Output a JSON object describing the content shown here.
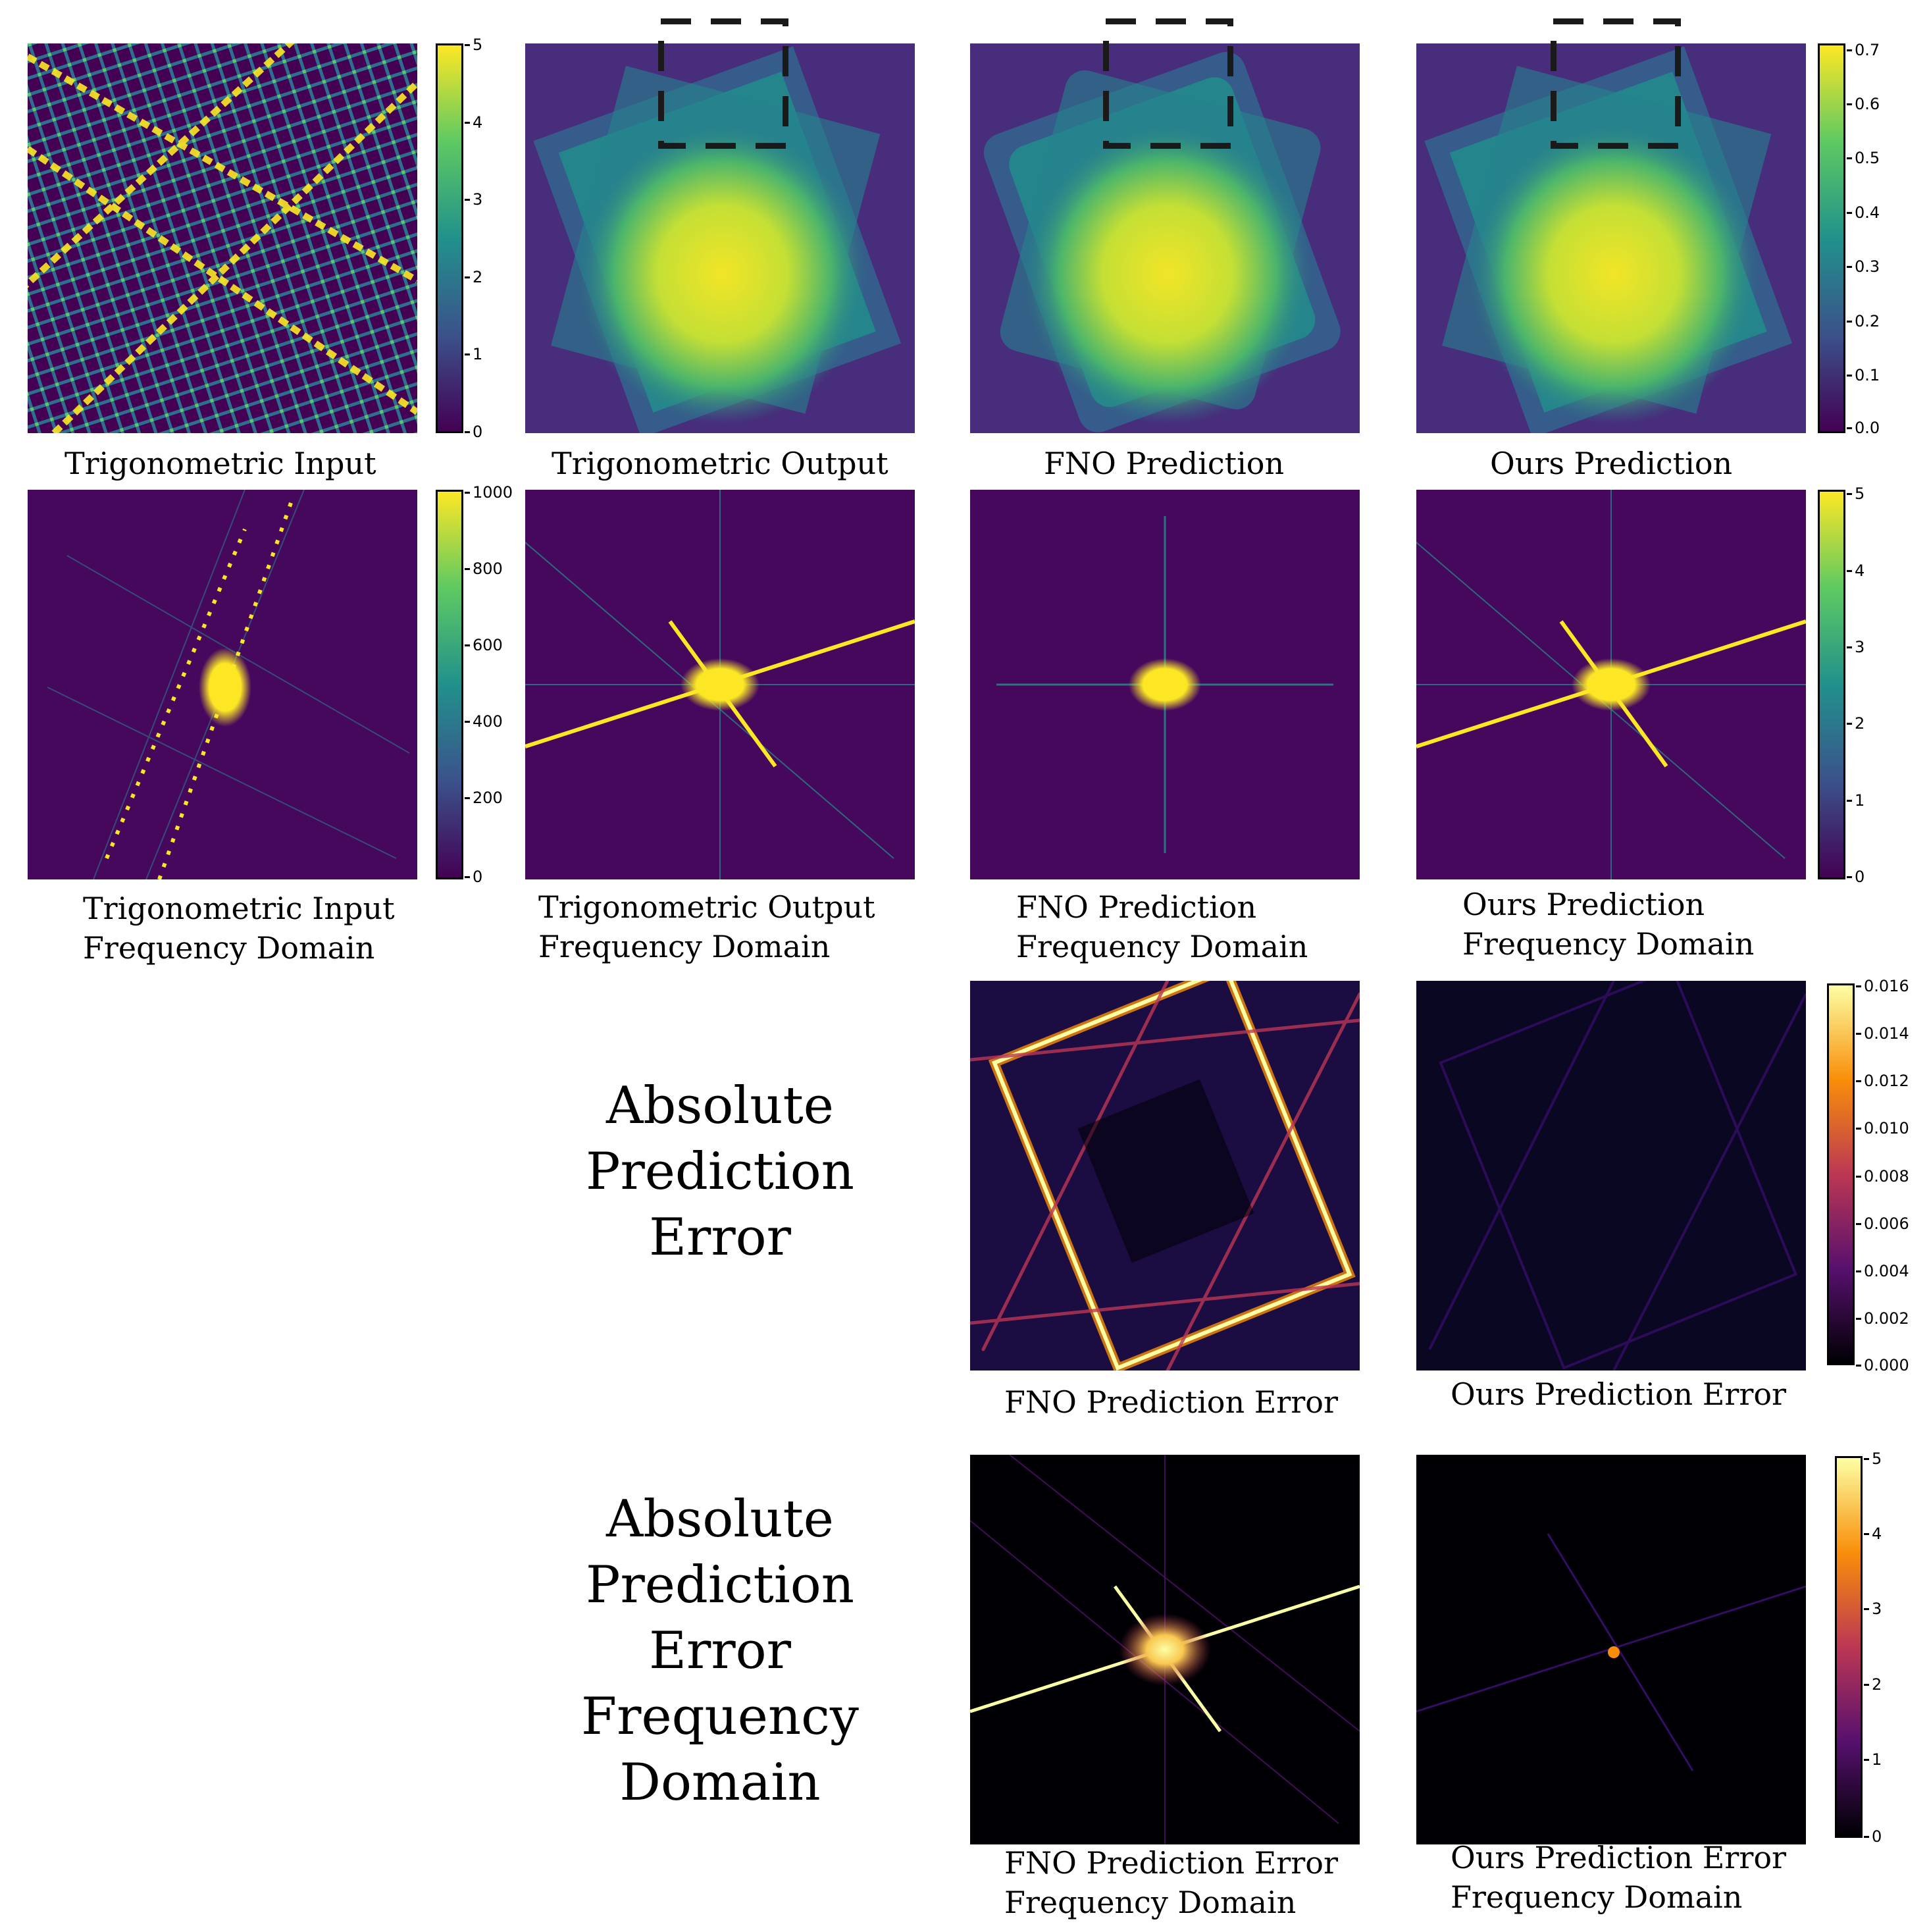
{
  "captions": {
    "r1c1": [
      "Trigonometric Input"
    ],
    "r1c2": [
      "Trigonometric Output"
    ],
    "r1c3": [
      "FNO Prediction"
    ],
    "r1c4": [
      "Ours Prediction"
    ],
    "r2c1": [
      "Trigonometric Input",
      "Frequency Domain"
    ],
    "r2c2": [
      "Trigonometric Output",
      "Frequency Domain"
    ],
    "r2c3": [
      "FNO Prediction",
      "Frequency Domain"
    ],
    "r2c4": [
      "Ours Prediction",
      "Frequency Domain"
    ],
    "r3c3": [
      "FNO Prediction Error"
    ],
    "r3c4": [
      "Ours Prediction Error"
    ],
    "r4c3": [
      "FNO Prediction Error",
      "Frequency Domain"
    ],
    "r4c4": [
      "Ours Prediction Error",
      "Frequency Domain"
    ]
  },
  "row_labels": {
    "error": [
      "Absolute",
      "Prediction",
      "Error"
    ],
    "error_freq": [
      "Absolute",
      "Prediction",
      "Error",
      "Frequency",
      "Domain"
    ]
  },
  "colorbars": {
    "input": {
      "colormap": "viridis",
      "ticks": [
        "5",
        "4",
        "3",
        "2",
        "1",
        "0"
      ]
    },
    "output": {
      "colormap": "viridis",
      "ticks": [
        "0.7",
        "0.6",
        "0.5",
        "0.4",
        "0.3",
        "0.2",
        "0.1",
        "0.0"
      ]
    },
    "input_freq": {
      "colormap": "viridis",
      "ticks": [
        "1000",
        "800",
        "600",
        "400",
        "200",
        "0"
      ]
    },
    "output_freq": {
      "colormap": "viridis",
      "ticks": [
        "5",
        "4",
        "3",
        "2",
        "1",
        "0"
      ]
    },
    "error": {
      "colormap": "inferno",
      "ticks": [
        "0.016",
        "0.014",
        "0.012",
        "0.010",
        "0.008",
        "0.006",
        "0.004",
        "0.002",
        "0.000"
      ]
    },
    "error_freq": {
      "colormap": "inferno",
      "ticks": [
        "5",
        "4",
        "3",
        "2",
        "1",
        "0"
      ]
    }
  },
  "colors": {
    "viridis_low": "#440154",
    "viridis_mid": "#21918c",
    "viridis_high": "#fde725",
    "inferno_low": "#000004",
    "inferno_mid": "#bc3754",
    "inferno_high": "#fcffa4"
  }
}
